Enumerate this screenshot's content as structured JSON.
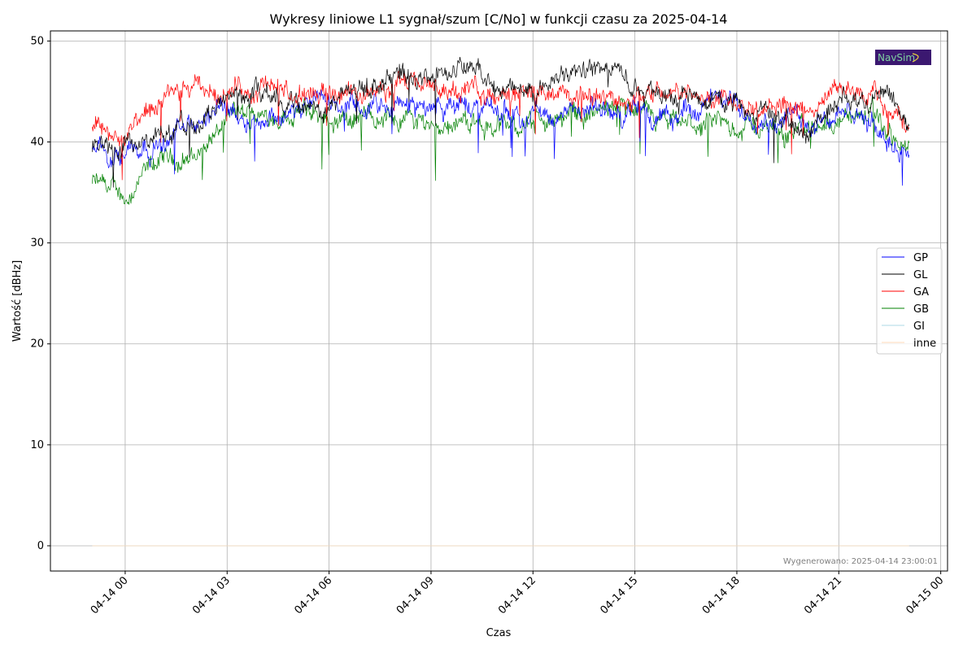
{
  "chart_data": {
    "type": "line",
    "title": "Wykresy liniowe L1 sygnał/szum [C/No] w funkcji czasu za 2025-04-14",
    "xlabel": "Czas",
    "ylabel": "Wartość [dBHz]",
    "ylim": [
      -2.5,
      51
    ],
    "xlim_hours": [
      -2.2,
      24.2
    ],
    "grid": true,
    "legend_position": "right",
    "x_ticks": [
      {
        "hour": 0,
        "label": "04-14 00"
      },
      {
        "hour": 3,
        "label": "04-14 03"
      },
      {
        "hour": 6,
        "label": "04-14 06"
      },
      {
        "hour": 9,
        "label": "04-14 09"
      },
      {
        "hour": 12,
        "label": "04-14 12"
      },
      {
        "hour": 15,
        "label": "04-14 15"
      },
      {
        "hour": 18,
        "label": "04-14 18"
      },
      {
        "hour": 21,
        "label": "04-14 21"
      },
      {
        "hour": 24,
        "label": "04-15 00"
      }
    ],
    "y_ticks": [
      0,
      10,
      20,
      30,
      40,
      50
    ],
    "x_hours": [
      -1,
      0,
      1,
      2,
      3,
      4,
      5,
      6,
      7,
      8,
      9,
      10,
      11,
      12,
      13,
      14,
      15,
      16,
      17,
      18,
      19,
      20,
      21,
      22,
      23
    ],
    "series": [
      {
        "name": "GP",
        "color": "#0000ff",
        "values": [
          39,
          39.5,
          40,
          41.5,
          43.5,
          42.5,
          43,
          44,
          43,
          43.5,
          43.5,
          43.5,
          43,
          43,
          42.5,
          43,
          43,
          42,
          44,
          43.5,
          42.5,
          42,
          43,
          41.5,
          39.5
        ]
      },
      {
        "name": "GL",
        "color": "#000000",
        "values": [
          39,
          39,
          40.5,
          41.5,
          45,
          45,
          43.5,
          44.5,
          45.5,
          46.5,
          46.5,
          47.5,
          45,
          45,
          47,
          47.5,
          46,
          45,
          44.5,
          44.5,
          43,
          40.5,
          44.5,
          45,
          41.5
        ]
      },
      {
        "name": "GA",
        "color": "#ff0000",
        "values": [
          41.5,
          40.5,
          43.5,
          45,
          45,
          45.5,
          44.5,
          44.5,
          45,
          45.5,
          45.5,
          45,
          44.5,
          45,
          44.5,
          44,
          44.5,
          45.5,
          44.5,
          44.5,
          44,
          43,
          45,
          44.5,
          42
        ]
      },
      {
        "name": "GB",
        "color": "#008000",
        "values": [
          36,
          34.5,
          38,
          38.5,
          42,
          42.5,
          43,
          42.5,
          42.5,
          42.5,
          42,
          42,
          41.5,
          42,
          42.5,
          43,
          42.5,
          41.5,
          41.5,
          41.5,
          41.5,
          41,
          42.5,
          42.5,
          39
        ]
      },
      {
        "name": "GI",
        "color": "#add8e6",
        "values": [
          0,
          0,
          0,
          0,
          0,
          0,
          0,
          0,
          0,
          0,
          0,
          0,
          0,
          0,
          0,
          0,
          0,
          0,
          0,
          0,
          0,
          0,
          0,
          0,
          0
        ]
      },
      {
        "name": "inne",
        "color": "#ffdab9",
        "values": [
          0,
          0,
          0,
          0,
          0,
          0,
          0,
          0,
          0,
          0,
          0,
          0,
          0,
          0,
          0,
          0,
          0,
          0,
          0,
          0,
          0,
          0,
          0,
          0,
          0
        ]
      }
    ],
    "annotation": "Wygenerowano: 2025-04-14 23:00:01",
    "logo_text": "NavSim"
  }
}
